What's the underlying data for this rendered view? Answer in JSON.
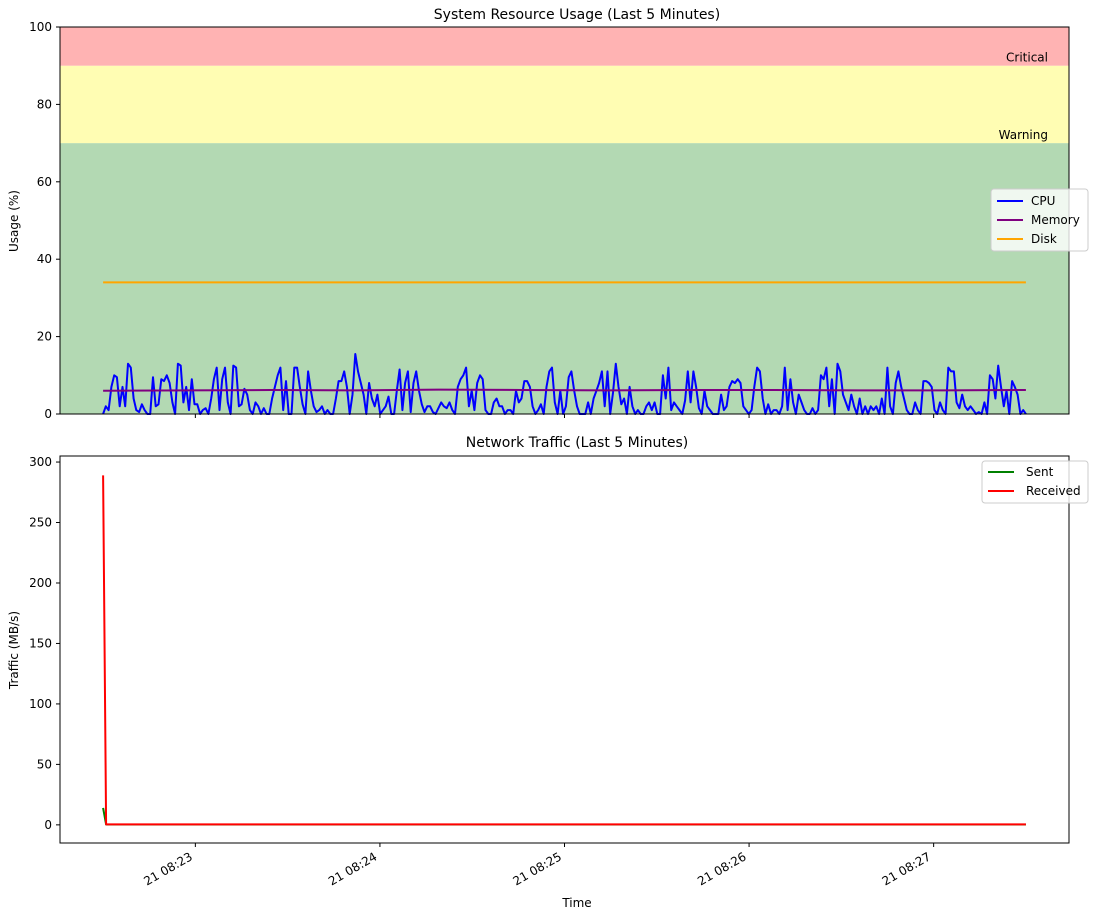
{
  "chart_data": [
    {
      "type": "line",
      "title": "System Resource Usage (Last 5 Minutes)",
      "xlabel": "",
      "ylabel": "Usage (%)",
      "ylim": [
        0,
        100
      ],
      "yticks": [
        "0",
        "20",
        "40",
        "60",
        "80",
        "100"
      ],
      "zones": [
        {
          "name": "normal",
          "from": 0,
          "to": 70,
          "color": "#b3d9b3",
          "label": ""
        },
        {
          "name": "warning",
          "from": 70,
          "to": 90,
          "color": "#fffdb3",
          "label": "Warning"
        },
        {
          "name": "critical",
          "from": 90,
          "to": 100,
          "color": "#ffb3b3",
          "label": "Critical"
        }
      ],
      "legend_position": "center-right",
      "x_range": [
        "08:22:30",
        "08:27:30"
      ],
      "series": [
        {
          "name": "CPU",
          "color": "#0000ff",
          "sample_interval_s": 1,
          "values": [
            0,
            2,
            1,
            7,
            10,
            9.5,
            2,
            7,
            2,
            13,
            12,
            4,
            1,
            0.5,
            2.5,
            1,
            0,
            0,
            9.5,
            2,
            2.5,
            9,
            8.5,
            10,
            8,
            3,
            0,
            13,
            12.5,
            3,
            7,
            1,
            9,
            2.5,
            2.5,
            0,
            1,
            1.5,
            0,
            4,
            9,
            12,
            1,
            9,
            12,
            3,
            0,
            12.5,
            12,
            2,
            2.5,
            6.5,
            5,
            1,
            0,
            3,
            2,
            0,
            1.5,
            0,
            0,
            4,
            7,
            10,
            12,
            1,
            8.5,
            0,
            0,
            12,
            12,
            7,
            2.5,
            0,
            11,
            6,
            2,
            0.5,
            1,
            2,
            0,
            1,
            0,
            0,
            4,
            8.5,
            8.5,
            11,
            7,
            0,
            5,
            15.5,
            11,
            8,
            5,
            0,
            8,
            4,
            2,
            5,
            0,
            1,
            2,
            4.5,
            0,
            0,
            6,
            11.5,
            1,
            8,
            11,
            0.5,
            8,
            11,
            6,
            2.5,
            0.5,
            2,
            2,
            0.5,
            0,
            1.5,
            3,
            2,
            1.5,
            3,
            1,
            0,
            7,
            9,
            10,
            12,
            2,
            6,
            1,
            8,
            10,
            9,
            1,
            0,
            0,
            3,
            4,
            2,
            2,
            0,
            1,
            1,
            0,
            6,
            3,
            4,
            8.5,
            8.5,
            7,
            2,
            0,
            1,
            2.5,
            0,
            7,
            11,
            12,
            3,
            0,
            6,
            0,
            2,
            9.5,
            11,
            6,
            2,
            0,
            0,
            0,
            3,
            0,
            4,
            6,
            8,
            11,
            2,
            11,
            0,
            5.5,
            13,
            7,
            2.5,
            4,
            0,
            7,
            2,
            0,
            1,
            0,
            0,
            2,
            3,
            1,
            3,
            0,
            0,
            10,
            4,
            12,
            1,
            3,
            2,
            1,
            0,
            3.5,
            11,
            3,
            11,
            7,
            1.5,
            0,
            6,
            2,
            1,
            0,
            0,
            0,
            5,
            1,
            2,
            7,
            8.5,
            8,
            9,
            8,
            2,
            1,
            0,
            1,
            7,
            12,
            11,
            4,
            0,
            2.5,
            0,
            1,
            1,
            0,
            2,
            12,
            1,
            9,
            3,
            0,
            5,
            3,
            1,
            0,
            0,
            1.5,
            0,
            1,
            10,
            9,
            12,
            2,
            9,
            0,
            13,
            11,
            5,
            3,
            1,
            5,
            2,
            0,
            4,
            0,
            2,
            0,
            2,
            1,
            2,
            0,
            4,
            0,
            12,
            2,
            0,
            8,
            11,
            7,
            4,
            1,
            0,
            0,
            3,
            1,
            0,
            8.5,
            8.5,
            8,
            7,
            1,
            0,
            3,
            1,
            0,
            12,
            11,
            11,
            3,
            1.5,
            5,
            2,
            1,
            2,
            1,
            0,
            0.5,
            0,
            3,
            0,
            10,
            9,
            4,
            12.5,
            7,
            2,
            6,
            0,
            8.5,
            7,
            5,
            0,
            1,
            0
          ]
        },
        {
          "name": "Memory",
          "color": "#800080",
          "sample_interval_s": 1,
          "values": [
            6,
            6.1,
            6.2,
            6.1,
            6.3,
            6.2,
            6.1,
            6.2,
            6.2,
            6.1,
            6.1,
            6.2
          ]
        },
        {
          "name": "Disk",
          "color": "#ffa500",
          "sample_interval_s": 1,
          "values": [
            34,
            34,
            34,
            34,
            34,
            34,
            34,
            34,
            34,
            34,
            34,
            34
          ]
        }
      ]
    },
    {
      "type": "line",
      "title": "Network Traffic (Last 5 Minutes)",
      "xlabel": "Time",
      "ylabel": "Traffic (MB/s)",
      "ylim": [
        -15,
        305
      ],
      "yticks": [
        "0",
        "50",
        "100",
        "150",
        "200",
        "250",
        "300"
      ],
      "legend_position": "top-right",
      "x_range": [
        "08:22:30",
        "08:27:30"
      ],
      "x_tick_labels": [
        "21 08:23",
        "21 08:24",
        "21 08:25",
        "21 08:26",
        "21 08:27"
      ],
      "x_tick_times": [
        "08:23:00",
        "08:24:00",
        "08:25:00",
        "08:26:00",
        "08:27:00"
      ],
      "series": [
        {
          "name": "Sent",
          "color": "#008000",
          "points": [
            [
              "08:22:30",
              14
            ],
            [
              "08:22:31",
              0.3
            ],
            [
              "08:27:30",
              0.3
            ]
          ]
        },
        {
          "name": "Received",
          "color": "#ff0000",
          "points": [
            [
              "08:22:30",
              289
            ],
            [
              "08:22:31",
              0.4
            ],
            [
              "08:27:30",
              0.4
            ]
          ]
        }
      ]
    }
  ]
}
